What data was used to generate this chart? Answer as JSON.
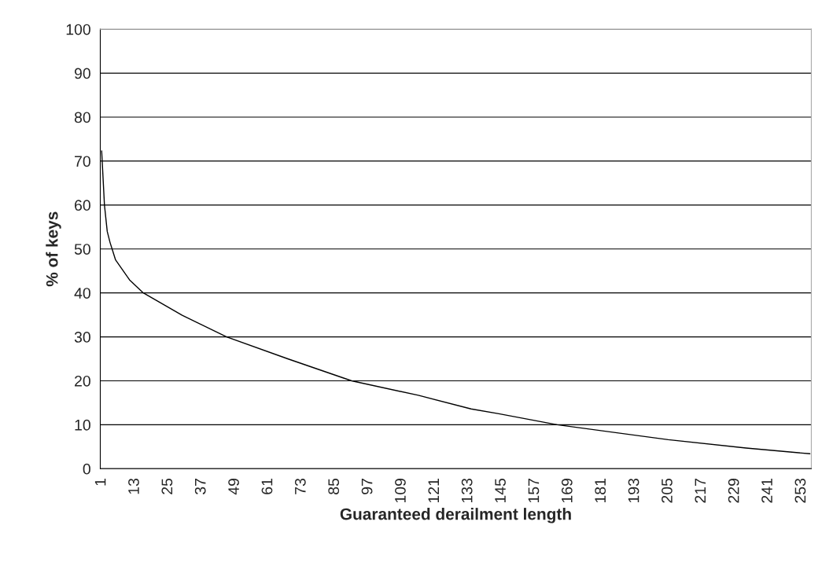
{
  "chart_data": {
    "type": "line",
    "xlabel": "Guaranteed derailment length",
    "ylabel": "% of keys",
    "x": [
      1,
      2,
      3,
      4,
      5,
      6,
      11,
      16,
      30,
      46,
      68,
      91,
      115,
      134,
      144,
      165,
      205,
      233,
      256
    ],
    "series": [
      {
        "color": "#000000",
        "values": [
          72.3,
          60,
          54,
          51.5,
          49.5,
          47.5,
          43,
          40,
          34.9,
          30,
          25,
          20,
          16.7,
          13.6,
          12.5,
          10,
          6.6,
          4.7,
          3.4
        ]
      }
    ],
    "xlim": [
      0.5,
      256.5
    ],
    "xticks": [
      1,
      13,
      25,
      37,
      49,
      61,
      73,
      85,
      97,
      109,
      121,
      133,
      145,
      157,
      169,
      181,
      193,
      205,
      217,
      229,
      241,
      253
    ],
    "ylim": [
      0,
      100
    ],
    "yticks": [
      0,
      10,
      20,
      30,
      40,
      50,
      60,
      70,
      80,
      90,
      100
    ],
    "grid": "y",
    "marker": "none",
    "line_style": "solid"
  }
}
